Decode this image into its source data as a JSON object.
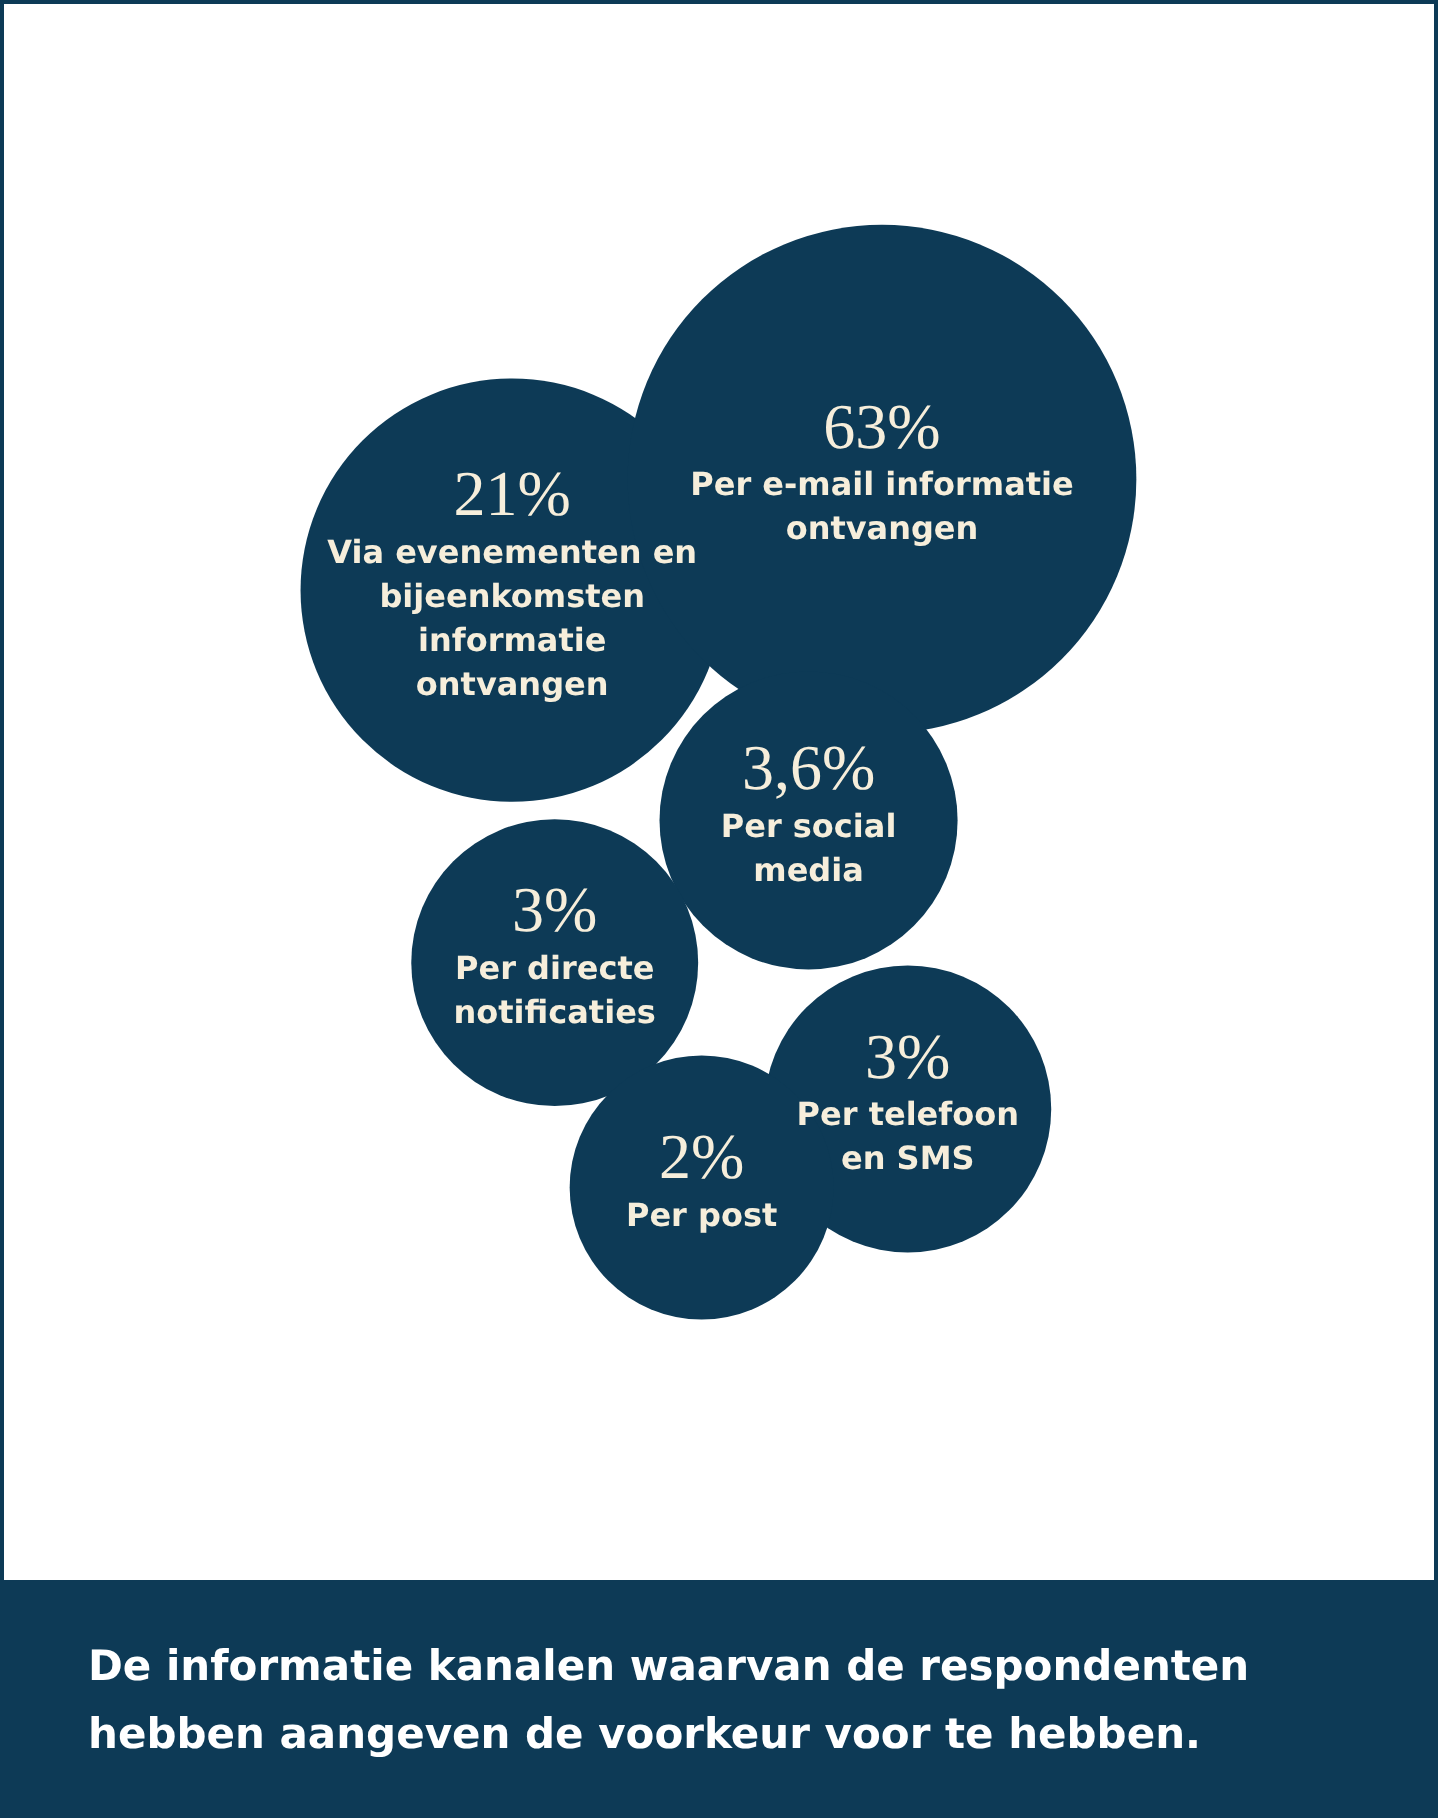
{
  "chart_data": {
    "type": "other",
    "title": "De informatie kanalen waarvan de respondenten hebben aangeven de voorkeur voor te hebben.",
    "categories": [
      "Via evenementen en bijeenkomsten informatie ontvangen",
      "Per e-mail informatie ontvangen",
      "Per social media",
      "Per directe notificaties",
      "Per telefoon en SMS",
      "Per post"
    ],
    "values": [
      21,
      63,
      3.6,
      3,
      3,
      2
    ],
    "value_labels": [
      "21%",
      "63%",
      "3,6%",
      "3%",
      "3%",
      "2%"
    ],
    "color": "#0d3a56"
  }
}
